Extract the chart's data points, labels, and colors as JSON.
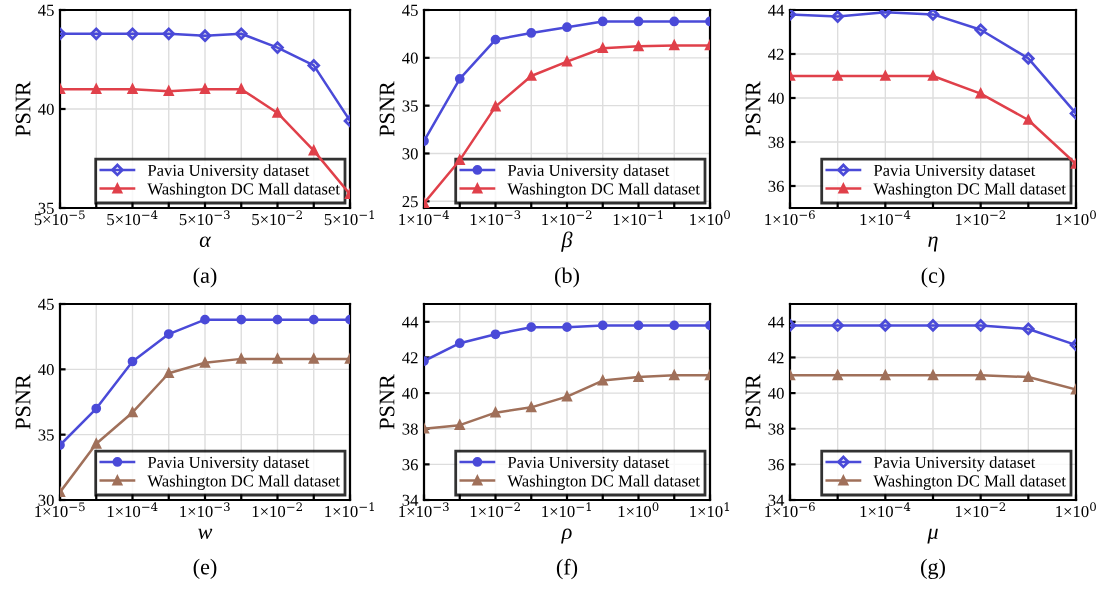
{
  "chart_data": [
    {
      "type": "line",
      "xlabel": "α",
      "ylabel": "PSNR",
      "annotations": [
        "(a)"
      ],
      "categories": [
        "5×10$^{−5}$",
        null,
        "5×10$^{−4}$",
        null,
        "5×10$^{−3}$",
        null,
        "5×10$^{−2}$",
        null,
        "5×10$^{−1}$"
      ],
      "ylim": [
        35,
        45
      ],
      "yticks": [
        35,
        40,
        45
      ],
      "grid": true,
      "legend": "bottom right",
      "series": [
        {
          "name": "Pavia University dataset",
          "color": "#4a4ad8",
          "marker": "diamond",
          "values": [
            43.8,
            43.8,
            43.8,
            43.8,
            43.7,
            43.8,
            43.1,
            42.2,
            39.4
          ]
        },
        {
          "name": "Washington DC Mall dataset",
          "color": "#e0404a",
          "marker": "triangle",
          "values": [
            41.0,
            41.0,
            41.0,
            40.9,
            41.0,
            41.0,
            39.8,
            37.9,
            35.7
          ]
        }
      ]
    },
    {
      "type": "line",
      "xlabel": "β",
      "ylabel": "PSNR",
      "annotations": [
        "(b)"
      ],
      "categories": [
        "1×10$^{−4}$",
        null,
        "1×10$^{−3}$",
        null,
        "1×10$^{−2}$",
        null,
        "1×10$^{−1}$",
        null,
        "1×10$^{0}$"
      ],
      "ylim": [
        24.3,
        45
      ],
      "yticks": [
        25,
        30,
        35,
        40,
        45
      ],
      "grid": true,
      "legend": "bottom right",
      "series": [
        {
          "name": "Pavia University dataset",
          "color": "#4a4ad8",
          "marker": "circle",
          "values": [
            31.3,
            37.8,
            41.9,
            42.6,
            43.2,
            43.8,
            43.8,
            43.8,
            43.8
          ]
        },
        {
          "name": "Washington DC Mall dataset",
          "color": "#e0404a",
          "marker": "triangle",
          "values": [
            24.8,
            29.3,
            34.9,
            38.1,
            39.6,
            41.0,
            41.2,
            41.3,
            41.3
          ]
        }
      ]
    },
    {
      "type": "line",
      "xlabel": "η",
      "ylabel": "PSNR",
      "annotations": [
        "(c)"
      ],
      "categories": [
        "1×10$^{−6}$",
        null,
        "1×10$^{−4}$",
        null,
        "1×10$^{−2}$",
        null,
        "1×10$^{0}$"
      ],
      "ylim": [
        35,
        44
      ],
      "yticks": [
        36,
        38,
        40,
        42,
        44
      ],
      "grid": true,
      "legend": "bottom right",
      "series": [
        {
          "name": "Pavia University dataset",
          "color": "#4a4ad8",
          "marker": "diamond",
          "values": [
            43.8,
            43.7,
            43.9,
            43.8,
            43.1,
            41.8,
            39.3
          ]
        },
        {
          "name": "Washington DC Mall dataset",
          "color": "#e0404a",
          "marker": "triangle",
          "values": [
            41.0,
            41.0,
            41.0,
            41.0,
            40.2,
            39.0,
            37.0
          ]
        }
      ]
    },
    {
      "type": "line",
      "xlabel": "w",
      "ylabel": "PSNR",
      "annotations": [
        "(e)"
      ],
      "categories": [
        "1×10$^{−5}$",
        null,
        "1×10$^{−4}$",
        null,
        "1×10$^{−3}$",
        null,
        "1×10$^{−2}$",
        null,
        "1×10$^{−1}$"
      ],
      "ylim": [
        30,
        45
      ],
      "yticks": [
        30,
        35,
        40,
        45
      ],
      "grid": true,
      "legend": "bottom right",
      "series": [
        {
          "name": "Pavia University dataset",
          "color": "#4a4ad8",
          "marker": "circle",
          "values": [
            34.2,
            37.0,
            40.6,
            42.7,
            43.8,
            43.8,
            43.8,
            43.8,
            43.8
          ]
        },
        {
          "name": "Washington DC Mall dataset",
          "color": "#a0705a",
          "marker": "triangle",
          "values": [
            30.6,
            34.3,
            36.7,
            39.7,
            40.5,
            40.8,
            40.8,
            40.8,
            40.8
          ]
        }
      ]
    },
    {
      "type": "line",
      "xlabel": "ρ",
      "ylabel": "PSNR",
      "annotations": [
        "(f)"
      ],
      "categories": [
        "1×10$^{−3}$",
        null,
        "1×10$^{−2}$",
        null,
        "1×10$^{−1}$",
        null,
        "1×10$^{0}$",
        null,
        "1×10$^{1}$"
      ],
      "ylim": [
        34,
        45
      ],
      "yticks": [
        34,
        36,
        38,
        40,
        42,
        44
      ],
      "grid": true,
      "legend": "bottom right",
      "series": [
        {
          "name": "Pavia University dataset",
          "color": "#4a4ad8",
          "marker": "circle",
          "values": [
            41.8,
            42.8,
            43.3,
            43.7,
            43.7,
            43.8,
            43.8,
            43.8,
            43.8
          ]
        },
        {
          "name": "Washington DC Mall dataset",
          "color": "#a0705a",
          "marker": "triangle",
          "values": [
            38.0,
            38.2,
            38.9,
            39.2,
            39.8,
            40.7,
            40.9,
            41.0,
            41.0
          ]
        }
      ]
    },
    {
      "type": "line",
      "xlabel": "μ",
      "ylabel": "PSNR",
      "annotations": [
        "(g)"
      ],
      "categories": [
        "1×10$^{−6}$",
        null,
        "1×10$^{−4}$",
        null,
        "1×10$^{−2}$",
        null,
        "1×10$^{0}$"
      ],
      "ylim": [
        34,
        45
      ],
      "yticks": [
        34,
        36,
        38,
        40,
        42,
        44
      ],
      "grid": true,
      "legend": "bottom right",
      "series": [
        {
          "name": "Pavia University dataset",
          "color": "#4a4ad8",
          "marker": "diamond",
          "values": [
            43.8,
            43.8,
            43.8,
            43.8,
            43.8,
            43.6,
            42.7
          ]
        },
        {
          "name": "Washington DC Mall dataset",
          "color": "#a0705a",
          "marker": "triangle",
          "values": [
            41.0,
            41.0,
            41.0,
            41.0,
            41.0,
            40.9,
            40.2
          ]
        }
      ]
    }
  ]
}
